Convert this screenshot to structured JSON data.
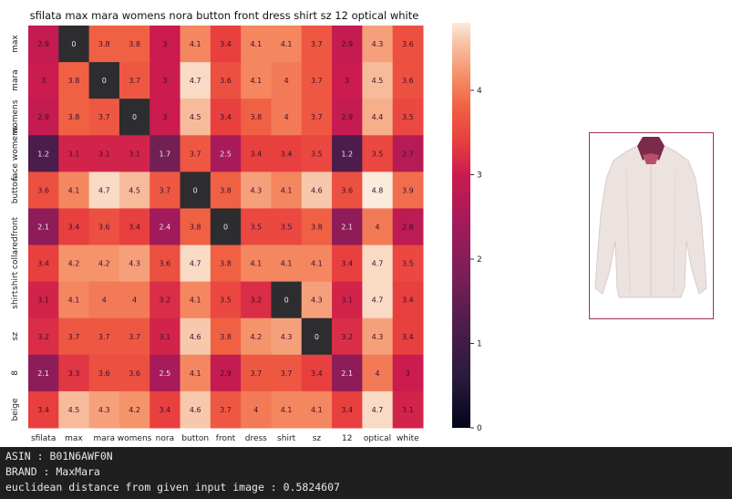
{
  "chart_data": {
    "type": "heatmap",
    "title": "sfilata max mara womens nora button front dress shirt sz 12 optical white",
    "x_categories": [
      "sfilata",
      "max",
      "mara",
      "womens",
      "nora",
      "button",
      "front",
      "dress",
      "shirt",
      "sz",
      "12",
      "optical",
      "white"
    ],
    "y_categories": [
      "max",
      "mara",
      "womens",
      "face womens",
      "button",
      "front",
      "shirt collared",
      "shirt",
      "sz",
      "8",
      "beige"
    ],
    "values": [
      [
        2.9,
        0,
        3.8,
        3.8,
        3,
        4.1,
        3.4,
        4.1,
        4.1,
        3.7,
        2.9,
        4.3,
        3.6
      ],
      [
        3,
        3.8,
        0,
        3.7,
        3,
        4.7,
        3.6,
        4.1,
        4,
        3.7,
        3,
        4.5,
        3.6
      ],
      [
        2.9,
        3.8,
        3.7,
        0,
        3,
        4.5,
        3.4,
        3.8,
        4,
        3.7,
        2.9,
        4.4,
        3.5
      ],
      [
        1.2,
        3.1,
        3.1,
        3.1,
        1.7,
        3.7,
        2.5,
        3.4,
        3.4,
        3.5,
        1.2,
        3.5,
        2.7
      ],
      [
        3.6,
        4.1,
        4.7,
        4.5,
        3.7,
        0,
        3.8,
        4.3,
        4.1,
        4.6,
        3.6,
        4.8,
        3.9
      ],
      [
        2.1,
        3.4,
        3.6,
        3.4,
        2.4,
        3.8,
        0,
        3.5,
        3.5,
        3.8,
        2.1,
        4,
        2.8
      ],
      [
        3.4,
        4.2,
        4.2,
        4.3,
        3.6,
        4.7,
        3.8,
        4.1,
        4.1,
        4.1,
        3.4,
        4.7,
        3.5
      ],
      [
        3.1,
        4.1,
        4,
        4,
        3.2,
        4.1,
        3.5,
        3.2,
        0,
        4.3,
        3.1,
        4.7,
        3.4
      ],
      [
        3.2,
        3.7,
        3.7,
        3.7,
        3.1,
        4.6,
        3.8,
        4.2,
        4.3,
        0,
        3.2,
        4.3,
        3.4
      ],
      [
        2.1,
        3.3,
        3.6,
        3.6,
        2.5,
        4.1,
        2.9,
        3.7,
        3.7,
        3.4,
        2.1,
        4,
        3
      ],
      [
        3.4,
        4.5,
        4.3,
        4.2,
        3.4,
        4.6,
        3.7,
        4,
        4.1,
        4.1,
        3.4,
        4.7,
        3.1
      ]
    ],
    "colorbar": {
      "min": 0,
      "max": 4.8,
      "ticks": [
        0,
        1,
        2,
        3,
        4
      ]
    },
    "colormap": "rocket",
    "annotations": true,
    "grid": false
  },
  "product_image": {
    "description_icon": "shirt-icon",
    "frame_color": "#a03048"
  },
  "console": {
    "asin_line": "ASIN : B01N6AWF0N",
    "brand_line": "BRAND : MaxMara",
    "distance_line": "euclidean distance from given input image : 0.5824607"
  }
}
